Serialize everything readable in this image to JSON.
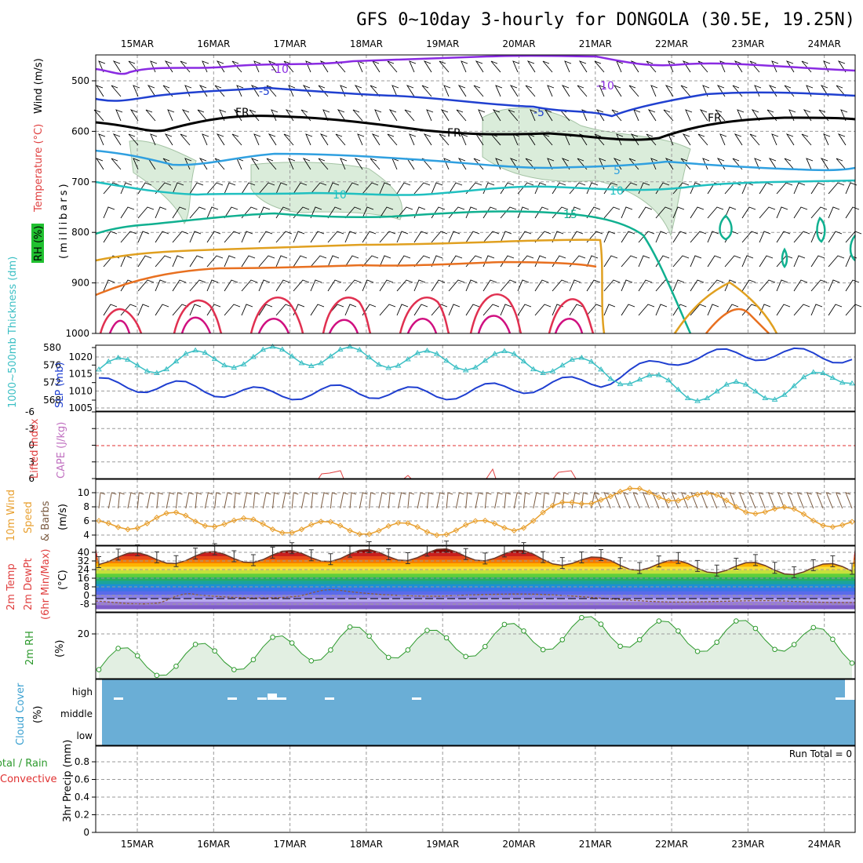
{
  "title": "GFS 0~10day 3-hourly for DONGOLA (30.5E, 19.25N)",
  "dates": [
    "15MAR",
    "16MAR",
    "17MAR",
    "18MAR",
    "19MAR",
    "20MAR",
    "21MAR",
    "22MAR",
    "23MAR",
    "24MAR"
  ],
  "colors": {
    "axis": "#000000",
    "grid": "#9a9a9a",
    "rh_fill": "#d6ead6",
    "thickness": "#3bbfc4",
    "slp": "#1f3fd0",
    "li": "#e04040",
    "wind": "#e8a030",
    "barb": "#7a5a40",
    "rh2m": "#2e9a2e",
    "rh2m_fill": "#e2efe2",
    "cloud": "#6aaed6",
    "zero_line": "#e03030"
  },
  "upper_panel": {
    "side_label_rh": "RH (%)",
    "side_label_temp": "Temperature (°C)",
    "side_label_wind": "Wind (m/s)",
    "axis_label": "(millibars)",
    "pressure_ticks": [
      "500",
      "600",
      "700",
      "800",
      "900",
      "1000"
    ],
    "contour_labels": [
      "-10",
      "-10",
      "-5",
      "-5",
      "FR",
      "FR",
      "FR",
      "5",
      "10",
      "10",
      "15"
    ]
  },
  "thickness_panel": {
    "label_left": "1000~500mb Thickness (dm)",
    "label_right": "SLP (mb)",
    "left_ticks": [
      "580",
      "576",
      "572",
      "568"
    ],
    "right_ticks": [
      "1020",
      "1015",
      "1010",
      "1005"
    ]
  },
  "cape_panel": {
    "label_li": "Lifted Index",
    "label_cape": "CAPE (J/kg)",
    "ticks": [
      "-6",
      "-3",
      "0",
      "3",
      "6"
    ]
  },
  "wind_panel": {
    "label_a": "10m Wind",
    "label_b": "Speed",
    "label_c": "& Barbs",
    "unit": "(m/s)",
    "ticks": [
      "10",
      "8",
      "6",
      "4"
    ]
  },
  "temp_panel": {
    "label_a": "2m Temp",
    "label_b": "2m DewPt",
    "label_c": "(6hr Min/Max)",
    "unit": "(°C)",
    "ticks": [
      "40",
      "32",
      "24",
      "16",
      "8",
      "0",
      "-8"
    ]
  },
  "rh_panel": {
    "label": "2m RH",
    "unit": "(%)",
    "ticks": [
      "20"
    ]
  },
  "cloud_panel": {
    "label": "Cloud Cover",
    "unit": "(%)",
    "levels": [
      "high",
      "middle",
      "low"
    ]
  },
  "precip_panel": {
    "label_a": "Total / Rain",
    "label_b": "Convective",
    "label_c": "3hr Precip (mm)",
    "ticks": [
      "0.8",
      "0.6",
      "0.4",
      "0.2",
      "0"
    ],
    "run_total": "Run Total = 0"
  },
  "chart_data": {
    "type": "line",
    "x": [
      "15MAR",
      "16MAR",
      "17MAR",
      "18MAR",
      "19MAR",
      "20MAR",
      "21MAR",
      "22MAR",
      "23MAR",
      "24MAR"
    ],
    "series": [
      {
        "name": "1000~500mb Thickness (dm)",
        "values": [
          575,
          577,
          578,
          578,
          577,
          577,
          575,
          570,
          570,
          574
        ]
      },
      {
        "name": "SLP (mb)",
        "values": [
          1012,
          1011,
          1009,
          1010,
          1009,
          1011,
          1013,
          1020,
          1021,
          1020
        ]
      },
      {
        "name": "10m Wind Speed (m/s)",
        "values": [
          5.2,
          6.5,
          5.2,
          5.0,
          4.8,
          5.5,
          9.8,
          9.7,
          7.5,
          5.5
        ]
      },
      {
        "name": "2m Temp max (°C)",
        "values": [
          34,
          35,
          36,
          37,
          38,
          37,
          30,
          27,
          25,
          24
        ]
      },
      {
        "name": "2m RH (%)",
        "values": [
          12,
          13,
          15,
          18,
          17,
          19,
          21,
          19,
          20,
          16
        ]
      }
    ],
    "pressure_ylim": [
      1000,
      450
    ],
    "grid": true
  }
}
